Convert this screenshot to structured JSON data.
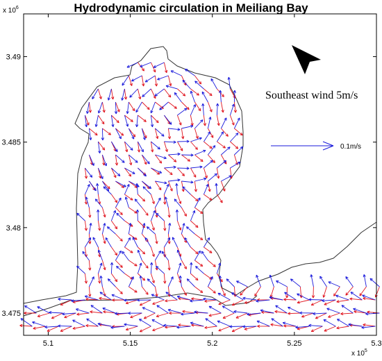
{
  "chart_data": {
    "type": "vector-field",
    "title": "Hydrodynamic circulation in Meiliang Bay",
    "xlim": [
      508500,
      530000
    ],
    "ylim": [
      3473700,
      3492500
    ],
    "x_ticks": [
      {
        "value": 510000,
        "label": "5.1"
      },
      {
        "value": 515000,
        "label": "5.15"
      },
      {
        "value": 520000,
        "label": "5.2"
      },
      {
        "value": 525000,
        "label": "5.25"
      },
      {
        "value": 530000,
        "label": "5.3"
      }
    ],
    "y_ticks": [
      {
        "value": 3475000,
        "label": "3.475"
      },
      {
        "value": 3480000,
        "label": "3.48"
      },
      {
        "value": 3485000,
        "label": "3.485"
      },
      {
        "value": 3490000,
        "label": "3.49"
      }
    ],
    "x_multiplier": "x 10",
    "x_multiplier_exp": "5",
    "y_multiplier": "x 10",
    "y_multiplier_exp": "6",
    "annotation": "Southeast wind 5m/s",
    "scale_label": "0.1m/s",
    "series_colors": {
      "surface": "#1a1adb",
      "bottom": "#e0141e",
      "shoreline": "#333333"
    },
    "grid": false
  },
  "icons": {
    "wind_direction": "arrowhead-icon"
  }
}
